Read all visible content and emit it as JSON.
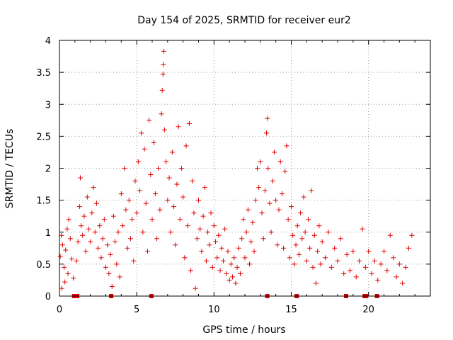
{
  "chart_data": {
    "type": "scatter",
    "title": "Day 154 of 2025, SRMTID for receiver eur2",
    "xlabel": "GPS time / hours",
    "ylabel": "SRMTID / TECUs",
    "xlim": [
      0,
      24
    ],
    "ylim": [
      0,
      4
    ],
    "xticks": [
      0,
      5,
      10,
      15,
      20
    ],
    "xtick_labels": [
      "0",
      "5",
      "10",
      "15",
      "20"
    ],
    "yticks": [
      0,
      0.5,
      1,
      1.5,
      2,
      2.5,
      3,
      3.5,
      4
    ],
    "ytick_labels": [
      "0",
      "0.5",
      "1",
      "1.5",
      "2",
      "2.5",
      "3",
      "3.5",
      "4"
    ],
    "grid": true,
    "marker": "+",
    "series": [
      {
        "name": "SRMTID",
        "color": "#e00000",
        "points": [
          [
            0.05,
            0.62
          ],
          [
            0.12,
            0.95
          ],
          [
            0.2,
            0.8
          ],
          [
            0.3,
            0.45
          ],
          [
            0.4,
            0.72
          ],
          [
            0.5,
            1.05
          ],
          [
            0.55,
            0.35
          ],
          [
            0.6,
            1.2
          ],
          [
            0.7,
            0.9
          ],
          [
            0.8,
            0.58
          ],
          [
            0.9,
            0.28
          ],
          [
            0.15,
            0.12
          ],
          [
            0.35,
            0.22
          ],
          [
            1.1,
            0.55
          ],
          [
            1.2,
            0.85
          ],
          [
            1.3,
            1.4
          ],
          [
            1.35,
            1.85
          ],
          [
            1.4,
            1.1
          ],
          [
            1.5,
            0.95
          ],
          [
            1.6,
            1.25
          ],
          [
            1.7,
            0.7
          ],
          [
            1.8,
            1.55
          ],
          [
            1.9,
            1.05
          ],
          [
            2.0,
            0.85
          ],
          [
            2.1,
            1.3
          ],
          [
            2.2,
            1.7
          ],
          [
            2.3,
            1.0
          ],
          [
            2.4,
            1.45
          ],
          [
            2.5,
            0.75
          ],
          [
            2.6,
            1.1
          ],
          [
            2.7,
            0.6
          ],
          [
            2.8,
            0.9
          ],
          [
            2.9,
            1.2
          ],
          [
            3.0,
            0.45
          ],
          [
            3.1,
            0.8
          ],
          [
            3.2,
            0.35
          ],
          [
            3.3,
            0.65
          ],
          [
            3.4,
            0.15
          ],
          [
            3.5,
            1.25
          ],
          [
            3.6,
            0.85
          ],
          [
            3.7,
            0.5
          ],
          [
            3.8,
            1.0
          ],
          [
            3.9,
            0.3
          ],
          [
            4.0,
            1.6
          ],
          [
            4.1,
            1.1
          ],
          [
            4.2,
            2.0
          ],
          [
            4.3,
            1.35
          ],
          [
            4.4,
            0.75
          ],
          [
            4.5,
            1.5
          ],
          [
            4.6,
            0.9
          ],
          [
            4.7,
            1.2
          ],
          [
            4.8,
            0.55
          ],
          [
            4.9,
            1.8
          ],
          [
            5.0,
            1.3
          ],
          [
            5.1,
            2.1
          ],
          [
            5.2,
            1.65
          ],
          [
            5.3,
            2.55
          ],
          [
            5.4,
            1.0
          ],
          [
            5.5,
            2.3
          ],
          [
            5.6,
            1.45
          ],
          [
            5.7,
            0.7
          ],
          [
            5.8,
            2.75
          ],
          [
            5.9,
            1.9
          ],
          [
            6.0,
            1.2
          ],
          [
            6.1,
            2.4
          ],
          [
            6.2,
            1.6
          ],
          [
            6.3,
            0.9
          ],
          [
            6.4,
            2.0
          ],
          [
            6.5,
            1.35
          ],
          [
            6.6,
            2.85
          ],
          [
            6.65,
            3.22
          ],
          [
            6.7,
            3.47
          ],
          [
            6.72,
            3.62
          ],
          [
            6.75,
            3.83
          ],
          [
            6.8,
            2.6
          ],
          [
            6.9,
            2.1
          ],
          [
            7.0,
            1.5
          ],
          [
            7.1,
            1.85
          ],
          [
            7.2,
            1.0
          ],
          [
            7.3,
            2.25
          ],
          [
            7.4,
            1.4
          ],
          [
            7.5,
            0.8
          ],
          [
            7.6,
            1.75
          ],
          [
            7.7,
            2.65
          ],
          [
            7.8,
            1.2
          ],
          [
            7.9,
            2.0
          ],
          [
            8.0,
            1.55
          ],
          [
            8.1,
            0.6
          ],
          [
            8.2,
            2.35
          ],
          [
            8.3,
            1.1
          ],
          [
            8.4,
            2.7
          ],
          [
            8.5,
            0.4
          ],
          [
            8.6,
            1.8
          ],
          [
            8.7,
            1.3
          ],
          [
            8.8,
            0.12
          ],
          [
            8.9,
            0.9
          ],
          [
            9.0,
            1.5
          ],
          [
            9.1,
            1.05
          ],
          [
            9.2,
            0.7
          ],
          [
            9.3,
            1.25
          ],
          [
            9.4,
            1.7
          ],
          [
            9.5,
            0.55
          ],
          [
            9.6,
            1.0
          ],
          [
            9.7,
            0.8
          ],
          [
            9.8,
            1.3
          ],
          [
            9.9,
            0.45
          ],
          [
            10.0,
            1.1
          ],
          [
            10.1,
            0.85
          ],
          [
            10.2,
            0.6
          ],
          [
            10.3,
            0.95
          ],
          [
            10.4,
            0.4
          ],
          [
            10.5,
            0.75
          ],
          [
            10.6,
            0.55
          ],
          [
            10.7,
            1.05
          ],
          [
            10.8,
            0.35
          ],
          [
            10.9,
            0.7
          ],
          [
            11.0,
            0.25
          ],
          [
            11.1,
            0.5
          ],
          [
            11.2,
            0.3
          ],
          [
            11.3,
            0.6
          ],
          [
            11.4,
            0.2
          ],
          [
            11.5,
            0.45
          ],
          [
            11.6,
            0.75
          ],
          [
            11.7,
            0.35
          ],
          [
            11.8,
            0.9
          ],
          [
            11.9,
            1.2
          ],
          [
            12.0,
            0.6
          ],
          [
            12.1,
            1.0
          ],
          [
            12.2,
            1.35
          ],
          [
            12.3,
            0.5
          ],
          [
            12.4,
            0.85
          ],
          [
            12.5,
            1.15
          ],
          [
            12.6,
            0.7
          ],
          [
            12.7,
            1.5
          ],
          [
            12.8,
            2.0
          ],
          [
            12.9,
            1.7
          ],
          [
            13.0,
            2.1
          ],
          [
            13.1,
            1.3
          ],
          [
            13.2,
            0.9
          ],
          [
            13.3,
            1.65
          ],
          [
            13.4,
            2.55
          ],
          [
            13.45,
            2.78
          ],
          [
            13.5,
            2.0
          ],
          [
            13.6,
            1.45
          ],
          [
            13.7,
            1.0
          ],
          [
            13.8,
            1.8
          ],
          [
            13.9,
            2.25
          ],
          [
            14.0,
            1.5
          ],
          [
            14.1,
            0.8
          ],
          [
            14.2,
            1.35
          ],
          [
            14.3,
            2.1
          ],
          [
            14.4,
            1.6
          ],
          [
            14.5,
            0.75
          ],
          [
            14.6,
            1.95
          ],
          [
            14.7,
            2.35
          ],
          [
            14.8,
            1.2
          ],
          [
            14.9,
            0.6
          ],
          [
            15.0,
            1.4
          ],
          [
            15.1,
            0.95
          ],
          [
            15.2,
            0.5
          ],
          [
            15.3,
            0.8
          ],
          [
            15.4,
            1.1
          ],
          [
            15.5,
            0.65
          ],
          [
            15.6,
            1.3
          ],
          [
            15.7,
            0.9
          ],
          [
            15.8,
            1.55
          ],
          [
            15.9,
            1.0
          ],
          [
            16.0,
            0.55
          ],
          [
            16.1,
            1.2
          ],
          [
            16.2,
            0.75
          ],
          [
            16.3,
            1.65
          ],
          [
            16.4,
            0.45
          ],
          [
            16.5,
            0.95
          ],
          [
            16.6,
            0.2
          ],
          [
            16.7,
            0.7
          ],
          [
            16.8,
            1.1
          ],
          [
            16.9,
            0.5
          ],
          [
            17.0,
            0.85
          ],
          [
            17.2,
            0.6
          ],
          [
            17.4,
            1.0
          ],
          [
            17.6,
            0.45
          ],
          [
            17.8,
            0.75
          ],
          [
            18.0,
            0.55
          ],
          [
            18.2,
            0.9
          ],
          [
            18.4,
            0.35
          ],
          [
            18.6,
            0.65
          ],
          [
            18.8,
            0.4
          ],
          [
            19.0,
            0.7
          ],
          [
            19.2,
            0.3
          ],
          [
            19.4,
            0.55
          ],
          [
            19.6,
            1.05
          ],
          [
            19.8,
            0.45
          ],
          [
            20.0,
            0.7
          ],
          [
            20.2,
            0.35
          ],
          [
            20.4,
            0.55
          ],
          [
            20.6,
            0.25
          ],
          [
            20.8,
            0.5
          ],
          [
            21.0,
            0.7
          ],
          [
            21.2,
            0.4
          ],
          [
            21.4,
            0.95
          ],
          [
            21.6,
            0.6
          ],
          [
            21.8,
            0.3
          ],
          [
            22.0,
            0.5
          ],
          [
            22.2,
            0.2
          ],
          [
            22.4,
            0.45
          ],
          [
            22.6,
            0.75
          ],
          [
            22.8,
            0.95
          ]
        ]
      }
    ],
    "gap_marks_x": [
      0.95,
      1.05,
      1.15,
      3.35,
      5.95,
      13.45,
      15.35,
      18.55,
      19.75,
      19.85,
      20.55
    ]
  }
}
